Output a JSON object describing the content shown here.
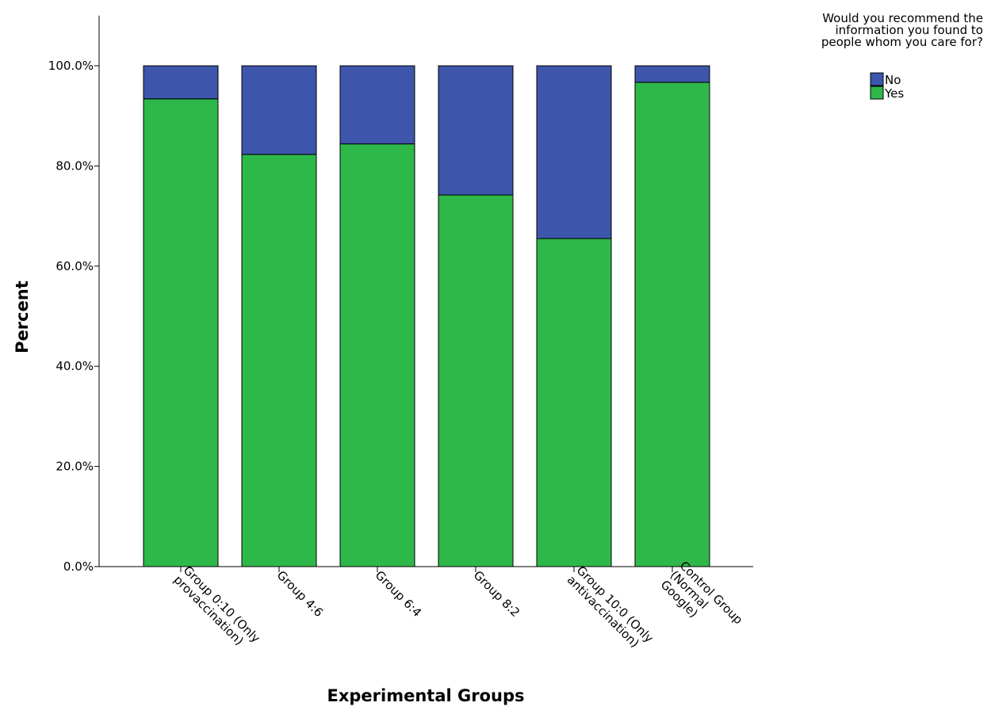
{
  "chart_data": {
    "type": "bar",
    "stacked": true,
    "normalized": true,
    "categories": [
      [
        "Group 0:10 (Only",
        "provaccination)"
      ],
      [
        "Group 4:6"
      ],
      [
        "Group 6:4"
      ],
      [
        "Group 8:2"
      ],
      [
        "Group 10:0 (Only",
        "antivaccination)"
      ],
      [
        "Control Group",
        "(Normal",
        "Google)"
      ]
    ],
    "series": [
      {
        "name": "Yes",
        "color": "#2eb84a",
        "values": [
          93.4,
          82.3,
          84.4,
          74.2,
          65.5,
          96.7
        ]
      },
      {
        "name": "No",
        "color": "#3d56ab",
        "values": [
          6.6,
          17.7,
          15.6,
          25.8,
          34.5,
          3.3
        ]
      }
    ],
    "xlabel": "Experimental Groups",
    "ylabel": "Percent",
    "ylim": [
      0,
      110
    ],
    "yticks": [
      "0.0%",
      "20.0%",
      "40.0%",
      "60.0%",
      "80.0%",
      "100.0%"
    ],
    "ytick_values": [
      0,
      20,
      40,
      60,
      80,
      100
    ],
    "grid": false,
    "legend": {
      "title": [
        "Would you recommend the",
        "information you found to",
        "people whom you care for?"
      ],
      "placement": "top-right",
      "entries": [
        {
          "name": "No",
          "color": "#3d56ab"
        },
        {
          "name": "Yes",
          "color": "#2eb84a"
        }
      ]
    }
  }
}
